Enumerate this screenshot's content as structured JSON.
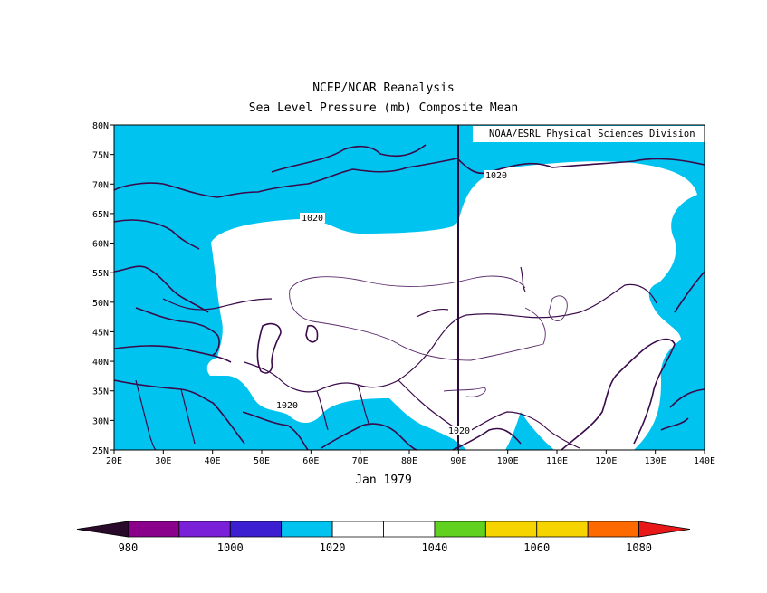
{
  "title": "NCEP/NCAR Reanalysis",
  "subtitle": "Sea Level Pressure (mb) Composite Mean",
  "credit": "NOAA/ESRL Physical Sciences Division",
  "period": "Jan 1979",
  "lat_labels": [
    "80N",
    "75N",
    "70N",
    "65N",
    "60N",
    "55N",
    "50N",
    "45N",
    "40N",
    "35N",
    "30N",
    "25N"
  ],
  "lon_labels": [
    "20E",
    "30E",
    "40E",
    "50E",
    "60E",
    "70E",
    "80E",
    "90E",
    "100E",
    "110E",
    "120E",
    "130E",
    "140E"
  ],
  "contour_labels": [
    "1020",
    "1020",
    "1020",
    "1020"
  ],
  "colorbar": {
    "tick_labels": [
      "980",
      "1000",
      "1020",
      "1040",
      "1060",
      "1080"
    ],
    "colors": [
      "#2a0a2a",
      "#8b008b",
      "#7a20d8",
      "#3b1fd0",
      "#00c3ef",
      "#ffffff",
      "#ffffff",
      "#5fd11e",
      "#f5d400",
      "#f5d400",
      "#ff6a00",
      "#e81818"
    ]
  },
  "chart_data": {
    "type": "heatmap",
    "variable": "Sea Level Pressure (mb) Composite Mean",
    "lon_range": [
      20,
      140
    ],
    "lat_range": [
      25,
      80
    ],
    "fill_levels": [
      {
        "range": "1010-1020",
        "color": "#00c3ef"
      },
      {
        "range": "1020-1030",
        "color": "#ffffff"
      }
    ],
    "contour_values": [
      1020,
      1030
    ]
  }
}
